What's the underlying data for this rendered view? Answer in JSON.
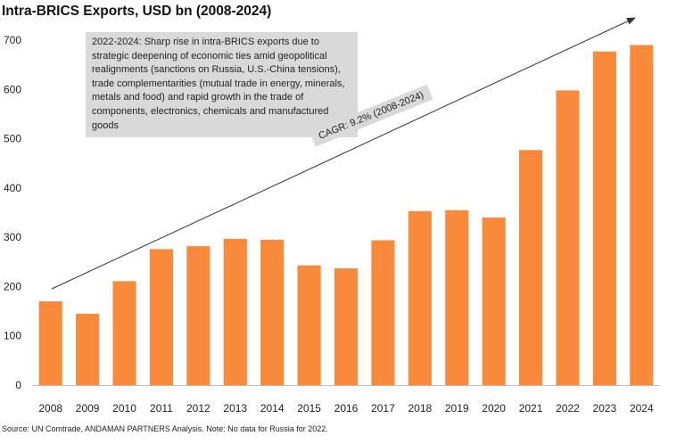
{
  "chart_data": {
    "type": "bar",
    "title": "Intra-BRICS Exports, USD bn (2008-2024)",
    "xlabel": "",
    "ylabel": "",
    "categories": [
      "2008",
      "2009",
      "2010",
      "2011",
      "2012",
      "2013",
      "2014",
      "2015",
      "2016",
      "2017",
      "2018",
      "2019",
      "2020",
      "2021",
      "2022",
      "2023",
      "2024"
    ],
    "values": [
      170,
      145,
      211,
      276,
      282,
      297,
      295,
      243,
      237,
      294,
      353,
      355,
      340,
      477,
      598,
      677,
      690
    ],
    "ylim": [
      0,
      700
    ],
    "yticks": [
      "0",
      "100",
      "200",
      "300",
      "400",
      "500",
      "600",
      "700"
    ],
    "grid": false,
    "bar_color": "#f98a3c",
    "annotations": {
      "note": "2022-2024: Sharp rise in intra-BRICS exports due to strategic deepening of economic ties amid geopolitical realignments (sanctions on Russia, U.S.-China tensions), trade complementarities (mutual trade in energy, minerals, metals and food) and rapid growth in the trade of components, electronics, chemicals and manufactured goods",
      "trend_label": "CAGR: 9.2% (2008-2024)"
    },
    "source": "Source: UN Comtrade, ANDAMAN PARTNERS Analysis. Note: No data for Russia for 2022."
  }
}
